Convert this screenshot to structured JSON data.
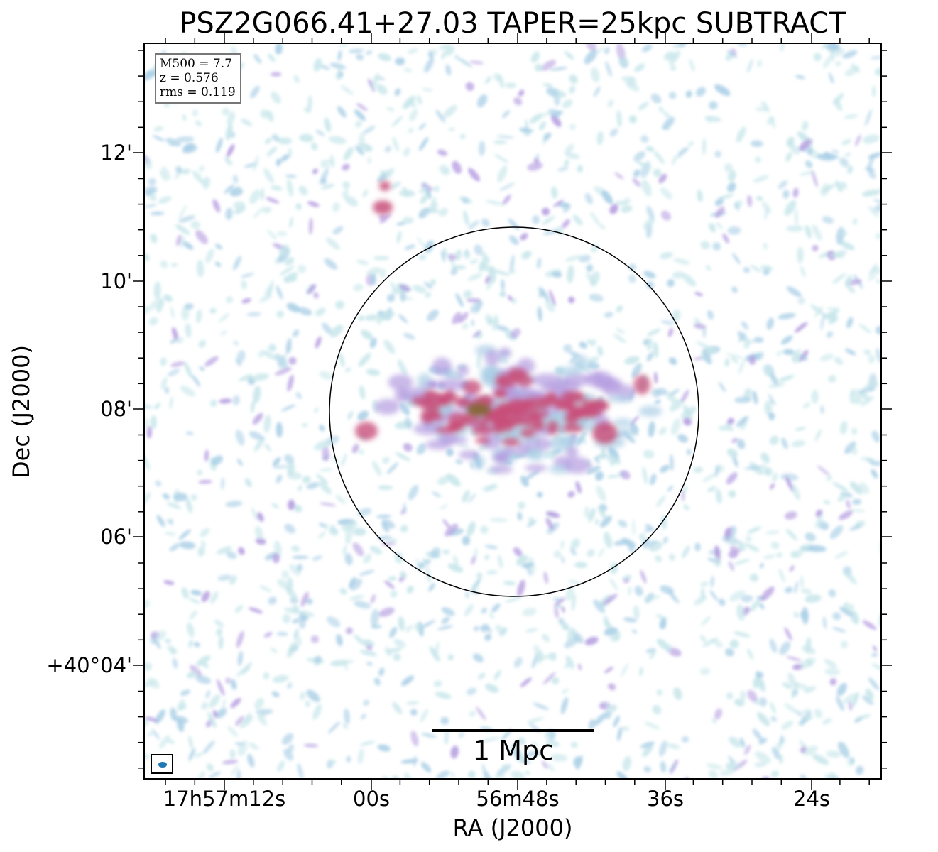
{
  "title": "PSZ2G066.41+27.03 TAPER=25kpc SUBTRACT",
  "info": {
    "mass": "M500 = 7.7",
    "redshift": "z = 0.576",
    "rms": "rms = 0.119"
  },
  "scale_bar_label": "1 Mpc",
  "axes": {
    "xlabel": "RA (J2000)",
    "ylabel": "Dec (J2000)",
    "xticks": [
      "17h57m12s",
      "00s",
      "56m48s",
      "36s",
      "24s"
    ],
    "yticks": [
      "12'",
      "10'",
      "08'",
      "06'",
      "+40°04'"
    ]
  },
  "colors": {
    "faint_emission": "#a9cfe6",
    "medium_emission": "#b49be0",
    "bright_emission": "#c8507a",
    "peak_emission": "#7a6a2a",
    "beam": "#1f77b4"
  }
}
